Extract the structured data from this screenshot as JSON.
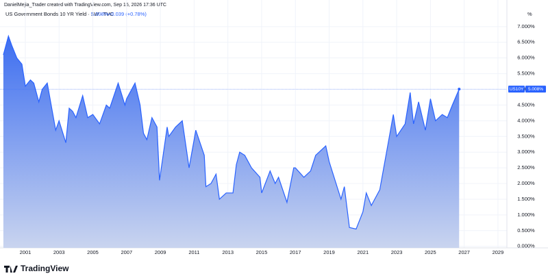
{
  "header": {
    "credit": "DanielMejia_Trader created with TradingView.com, Sep 15, 2026 17:36 UTC",
    "unit": "%",
    "brand": "TradingView"
  },
  "chart_data": {
    "type": "area",
    "title": "US Government Bonds 10 YR Yield · 1W · TVC",
    "color": "#2962ff",
    "grid": true,
    "last": {
      "symbol": "US10Y",
      "value": 5.008,
      "label": "5.008%",
      "change": "+0.039 (+0.78%)"
    },
    "x": [
      1999.7,
      2000.0,
      2000.2,
      2000.5,
      2000.8,
      2001.0,
      2001.3,
      2001.5,
      2001.8,
      2002.0,
      2002.3,
      2002.5,
      2002.8,
      2003.0,
      2003.4,
      2003.6,
      2003.8,
      2004.0,
      2004.4,
      2004.7,
      2005.0,
      2005.4,
      2005.8,
      2006.0,
      2006.5,
      2006.9,
      2007.0,
      2007.5,
      2007.8,
      2008.0,
      2008.2,
      2008.5,
      2008.8,
      2008.95,
      2009.4,
      2009.5,
      2009.9,
      2010.3,
      2010.7,
      2011.0,
      2011.1,
      2011.6,
      2011.7,
      2012.0,
      2012.3,
      2012.5,
      2012.9,
      2013.3,
      2013.5,
      2013.7,
      2014.0,
      2014.4,
      2014.9,
      2015.0,
      2015.5,
      2015.8,
      2016.0,
      2016.5,
      2016.9,
      2017.0,
      2017.5,
      2017.9,
      2018.2,
      2018.8,
      2019.0,
      2019.7,
      2019.9,
      2020.2,
      2020.6,
      2021.0,
      2021.2,
      2021.5,
      2022.0,
      2022.4,
      2022.8,
      2023.0,
      2023.5,
      2023.8,
      2024.0,
      2024.3,
      2024.7,
      2025.0,
      2025.3,
      2025.7,
      2026.0,
      2026.3,
      2026.7
    ],
    "values": [
      6.1,
      6.7,
      6.4,
      6.0,
      5.8,
      5.1,
      5.3,
      5.2,
      4.6,
      5.0,
      5.2,
      4.6,
      3.7,
      4.0,
      3.3,
      4.4,
      4.3,
      4.1,
      4.8,
      4.1,
      4.2,
      3.9,
      4.5,
      4.4,
      5.2,
      4.5,
      4.7,
      5.2,
      4.5,
      3.6,
      3.4,
      4.1,
      3.8,
      2.1,
      3.8,
      3.5,
      3.8,
      4.0,
      2.5,
      3.4,
      3.7,
      2.9,
      1.9,
      2.0,
      2.3,
      1.5,
      1.7,
      1.7,
      2.6,
      3.0,
      2.9,
      2.5,
      2.2,
      1.7,
      2.4,
      2.0,
      2.2,
      1.4,
      2.5,
      2.5,
      2.2,
      2.4,
      2.9,
      3.2,
      2.7,
      1.5,
      1.9,
      0.6,
      0.55,
      1.1,
      1.7,
      1.3,
      1.8,
      3.0,
      4.2,
      3.5,
      3.9,
      4.9,
      3.9,
      4.6,
      3.7,
      4.7,
      4.0,
      4.2,
      4.1,
      4.5,
      5.008
    ],
    "xlim": [
      1999.5,
      2029.53
    ],
    "xticks": [
      2001,
      2003,
      2005,
      2007,
      2009,
      2011,
      2013,
      2015,
      2017,
      2019,
      2021,
      2023,
      2025,
      2027,
      2029
    ],
    "ylim": [
      -0.05,
      7.52
    ],
    "yticks": [
      {
        "value": 0,
        "label": "0.000%"
      },
      {
        "value": 0.5,
        "label": "0.500%"
      },
      {
        "value": 1,
        "label": "1.000%"
      },
      {
        "value": 1.5,
        "label": "1.500%"
      },
      {
        "value": 2,
        "label": "2.000%"
      },
      {
        "value": 2.5,
        "label": "2.500%"
      },
      {
        "value": 3,
        "label": "3.000%"
      },
      {
        "value": 3.5,
        "label": "3.500%"
      },
      {
        "value": 4,
        "label": "4.000%"
      },
      {
        "value": 4.5,
        "label": "4.500%"
      },
      {
        "value": 5,
        "label": "5.000%"
      },
      {
        "value": 5.5,
        "label": "5.500%"
      },
      {
        "value": 6,
        "label": "6.000%"
      },
      {
        "value": 6.5,
        "label": "6.500%"
      },
      {
        "value": 7,
        "label": "7.000%"
      }
    ]
  }
}
